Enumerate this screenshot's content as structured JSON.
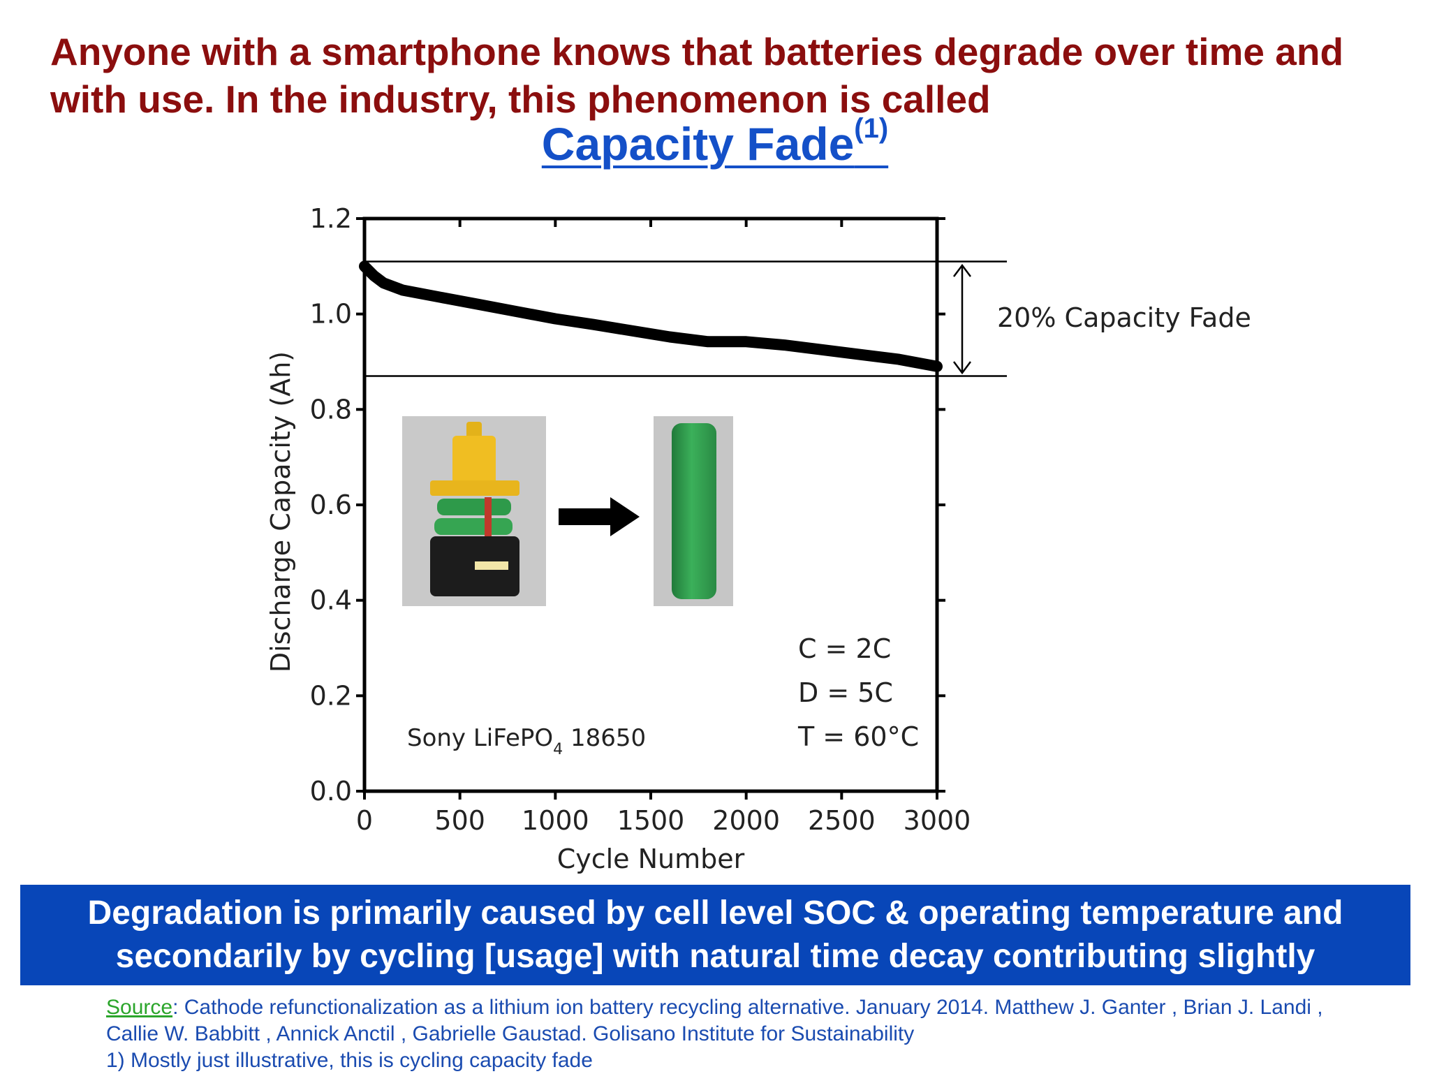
{
  "headline": "Anyone with a smartphone knows that batteries degrade over time and with use. In the industry, this phenomenon is called",
  "title": {
    "text": "Capacity Fade",
    "sup": "(1)"
  },
  "chart_data": {
    "type": "line",
    "xlabel": "Cycle Number",
    "ylabel": "Discharge Capacity (Ah)",
    "xlim": [
      0,
      3000
    ],
    "ylim": [
      0,
      1.2
    ],
    "xticks": [
      0,
      500,
      1000,
      1500,
      2000,
      2500,
      3000
    ],
    "yticks": [
      0.0,
      0.2,
      0.4,
      0.6,
      0.8,
      1.0,
      1.2
    ],
    "xtick_labels": [
      "0",
      "500",
      "1000",
      "1500",
      "2000",
      "2500",
      "3000"
    ],
    "ytick_labels": [
      "0.0",
      "0.2",
      "0.4",
      "0.6",
      "0.8",
      "1.0",
      "1.2"
    ],
    "grid": false,
    "series": [
      {
        "x": [
          0,
          50,
          100,
          200,
          400,
          600,
          800,
          1000,
          1200,
          1400,
          1600,
          1800,
          2000,
          2200,
          2400,
          2600,
          2800,
          3000
        ],
        "y": [
          1.1,
          1.08,
          1.065,
          1.05,
          1.035,
          1.02,
          1.005,
          0.99,
          0.978,
          0.965,
          0.952,
          0.942,
          0.942,
          0.935,
          0.925,
          0.915,
          0.905,
          0.89
        ]
      }
    ],
    "reference_lines": [
      1.11,
      0.87
    ],
    "fade_label": "20% Capacity Fade",
    "cell_label_main": "Sony LiFePO",
    "cell_label_sub": "4",
    "cell_label_tail": " 18650",
    "conditions": [
      "C = 2C",
      "D = 5C",
      "T = 60°C"
    ]
  },
  "banner": "Degradation is primarily caused by cell level SOC & operating temperature and secondarily by cycling [usage] with natural time decay contributing slightly",
  "source": {
    "link_label": "Source",
    "text": ": Cathode refunctionalization as a lithium ion battery recycling alternative. January 2014. Matthew J. Ganter , Brian J. Landi , Callie W. Babbitt , Annick Anctil , Gabrielle Gaustad. Golisano Institute for Sustainability",
    "note": "1) Mostly just  illustrative, this is cycling capacity fade"
  },
  "colors": {
    "headline": "#8b0e0e",
    "title": "#1450c8",
    "banner": "#0846b8",
    "source_link": "#2ba52b",
    "source_text": "#1a4bb0"
  }
}
